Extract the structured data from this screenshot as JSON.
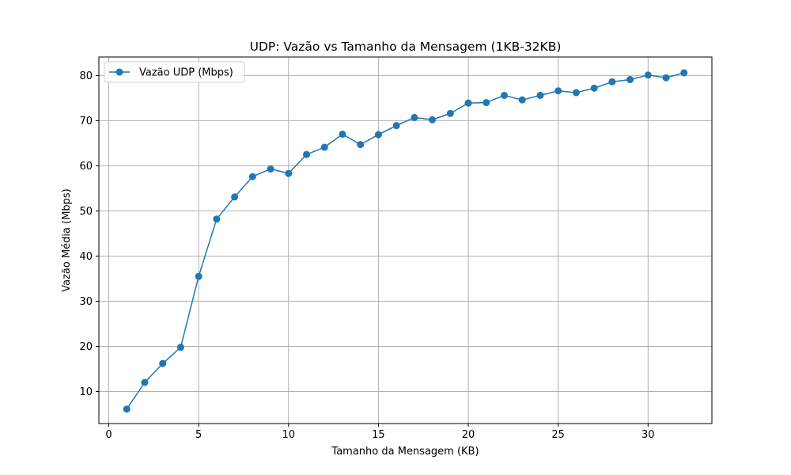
{
  "chart_data": {
    "type": "line",
    "title": "UDP: Vazão vs Tamanho da Mensagem (1KB-32KB)",
    "xlabel": "Tamanho da Mensagem (KB)",
    "ylabel": "Vazão Média (Mbps)",
    "xlim": [
      -0.55,
      33.55
    ],
    "ylim": [
      2.9,
      84.1
    ],
    "x_ticks": [
      0,
      5,
      10,
      15,
      20,
      25,
      30
    ],
    "y_ticks": [
      10,
      20,
      30,
      40,
      50,
      60,
      70,
      80
    ],
    "grid": true,
    "legend_position": "top-left",
    "series": [
      {
        "name": "Vazão UDP (Mbps)",
        "color": "#1f77b4",
        "marker": "circle",
        "x": [
          1,
          2,
          3,
          4,
          5,
          6,
          7,
          8,
          9,
          10,
          11,
          12,
          13,
          14,
          15,
          16,
          17,
          18,
          19,
          20,
          21,
          22,
          23,
          24,
          25,
          26,
          27,
          28,
          29,
          30,
          31,
          32
        ],
        "values": [
          6.1,
          12.0,
          16.2,
          19.8,
          35.5,
          48.2,
          53.1,
          57.6,
          59.3,
          58.3,
          62.5,
          64.1,
          67.0,
          64.7,
          66.9,
          68.9,
          70.7,
          70.2,
          71.6,
          73.9,
          74.0,
          75.6,
          74.6,
          75.6,
          76.6,
          76.2,
          77.2,
          78.6,
          79.1,
          80.1,
          79.5,
          80.6
        ]
      }
    ]
  }
}
